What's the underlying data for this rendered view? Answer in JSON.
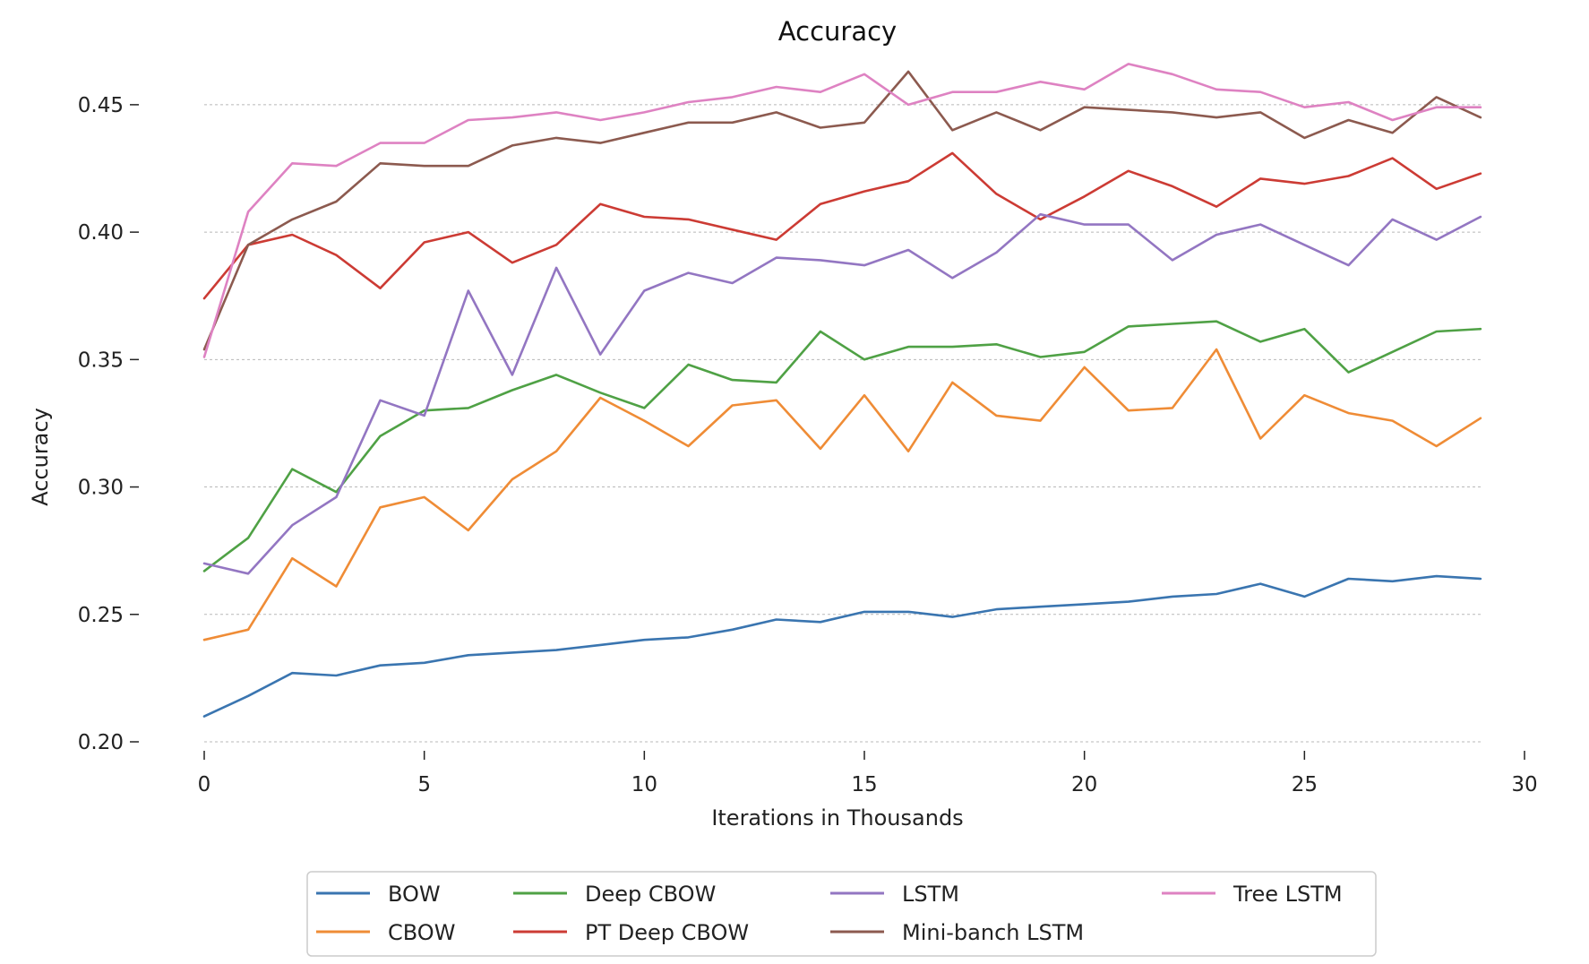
{
  "chart_data": {
    "type": "line",
    "title": "Accuracy",
    "xlabel": "Iterations in Thousands",
    "ylabel": "Accuracy",
    "xlim": [
      0,
      30
    ],
    "ylim": [
      0.2,
      0.47
    ],
    "xticks": [
      0,
      5,
      10,
      15,
      20,
      25,
      30
    ],
    "xtick_labels": [
      "0",
      "5",
      "10",
      "15",
      "20",
      "25",
      "30"
    ],
    "yticks": [
      0.2,
      0.25,
      0.3,
      0.35,
      0.4,
      0.45
    ],
    "ytick_labels": [
      "0.20",
      "0.25",
      "0.30",
      "0.35",
      "0.40",
      "0.45"
    ],
    "grid": "horizontal dashed",
    "legend_position": "bottom-center",
    "x": [
      0,
      1,
      2,
      3,
      4,
      5,
      6,
      7,
      8,
      9,
      10,
      11,
      12,
      13,
      14,
      15,
      16,
      17,
      18,
      19,
      20,
      21,
      22,
      23,
      24,
      25,
      26,
      27,
      28,
      29
    ],
    "series": [
      {
        "name": "BOW",
        "color": "#3a75b0",
        "values": [
          0.21,
          0.218,
          0.227,
          0.226,
          0.23,
          0.231,
          0.234,
          0.235,
          0.236,
          0.238,
          0.24,
          0.241,
          0.244,
          0.248,
          0.247,
          0.251,
          0.251,
          0.249,
          0.252,
          0.253,
          0.254,
          0.255,
          0.257,
          0.258,
          0.262,
          0.257,
          0.264,
          0.263,
          0.265,
          0.264
        ]
      },
      {
        "name": "CBOW",
        "color": "#ef8c36",
        "values": [
          0.24,
          0.244,
          0.272,
          0.261,
          0.292,
          0.296,
          0.283,
          0.303,
          0.314,
          0.335,
          0.326,
          0.316,
          0.332,
          0.334,
          0.315,
          0.336,
          0.314,
          0.341,
          0.328,
          0.326,
          0.347,
          0.33,
          0.331,
          0.354,
          0.319,
          0.336,
          0.329,
          0.326,
          0.316,
          0.327
        ]
      },
      {
        "name": "Deep CBOW",
        "color": "#4fa145",
        "values": [
          0.267,
          0.28,
          0.307,
          0.298,
          0.32,
          0.33,
          0.331,
          0.338,
          0.344,
          0.337,
          0.331,
          0.348,
          0.342,
          0.341,
          0.361,
          0.35,
          0.355,
          0.355,
          0.356,
          0.351,
          0.353,
          0.363,
          0.364,
          0.365,
          0.357,
          0.362,
          0.345,
          0.353,
          0.361,
          0.362
        ]
      },
      {
        "name": "PT Deep CBOW",
        "color": "#cc3b34",
        "values": [
          0.374,
          0.395,
          0.399,
          0.391,
          0.378,
          0.396,
          0.4,
          0.388,
          0.395,
          0.411,
          0.406,
          0.405,
          0.401,
          0.397,
          0.411,
          0.416,
          0.42,
          0.431,
          0.415,
          0.405,
          0.414,
          0.424,
          0.418,
          0.41,
          0.421,
          0.419,
          0.422,
          0.429,
          0.417,
          0.423
        ]
      },
      {
        "name": "LSTM",
        "color": "#9376c2",
        "values": [
          0.27,
          0.266,
          0.285,
          0.296,
          0.334,
          0.328,
          0.377,
          0.344,
          0.386,
          0.352,
          0.377,
          0.384,
          0.38,
          0.39,
          0.389,
          0.387,
          0.393,
          0.382,
          0.392,
          0.407,
          0.403,
          0.403,
          0.389,
          0.399,
          0.403,
          0.395,
          0.387,
          0.405,
          0.397,
          0.406
        ]
      },
      {
        "name": "Mini-banch LSTM",
        "color": "#8c5a4f",
        "values": [
          0.354,
          0.395,
          0.405,
          0.412,
          0.427,
          0.426,
          0.426,
          0.434,
          0.437,
          0.435,
          0.439,
          0.443,
          0.443,
          0.447,
          0.441,
          0.443,
          0.463,
          0.44,
          0.447,
          0.44,
          0.449,
          0.448,
          0.447,
          0.445,
          0.447,
          0.437,
          0.444,
          0.439,
          0.453,
          0.445
        ]
      },
      {
        "name": "Tree LSTM",
        "color": "#de82c2",
        "values": [
          0.351,
          0.408,
          0.427,
          0.426,
          0.435,
          0.435,
          0.444,
          0.445,
          0.447,
          0.444,
          0.447,
          0.451,
          0.453,
          0.457,
          0.455,
          0.462,
          0.45,
          0.455,
          0.455,
          0.459,
          0.456,
          0.466,
          0.462,
          0.456,
          0.455,
          0.449,
          0.451,
          0.444,
          0.449,
          0.449
        ]
      }
    ],
    "legend_order": [
      "BOW",
      "CBOW",
      "Deep CBOW",
      "PT Deep CBOW",
      "LSTM",
      "Mini-banch LSTM",
      "Tree LSTM"
    ]
  }
}
